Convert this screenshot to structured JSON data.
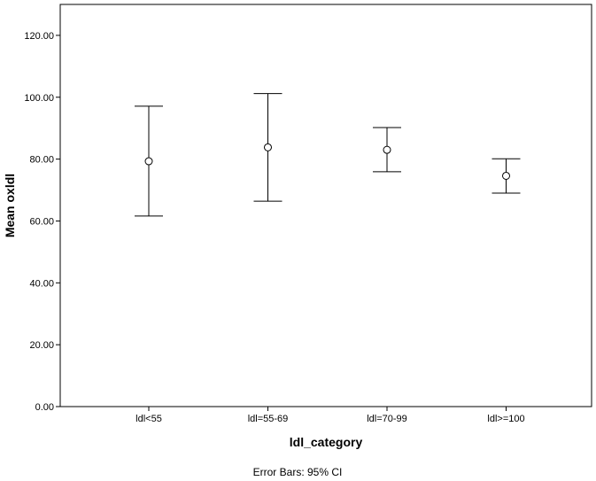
{
  "chart_data": {
    "type": "errorbar",
    "xlabel": "ldl_category",
    "ylabel": "Mean oxldl",
    "ylim": [
      0,
      130
    ],
    "yticks": [
      "0.00",
      "20.00",
      "40.00",
      "60.00",
      "80.00",
      "100.00",
      "120.00"
    ],
    "grid": false,
    "categories": [
      "ldl<55",
      "ldl=55-69",
      "ldl=70-99",
      "ldl>=100"
    ],
    "series": [
      {
        "means": [
          79.3,
          83.8,
          83.0,
          74.6
        ],
        "lower": [
          61.6,
          66.4,
          75.9,
          69.0
        ],
        "upper": [
          97.1,
          101.2,
          90.2,
          80.1
        ]
      }
    ],
    "footnote": "Error Bars: 95% CI"
  }
}
